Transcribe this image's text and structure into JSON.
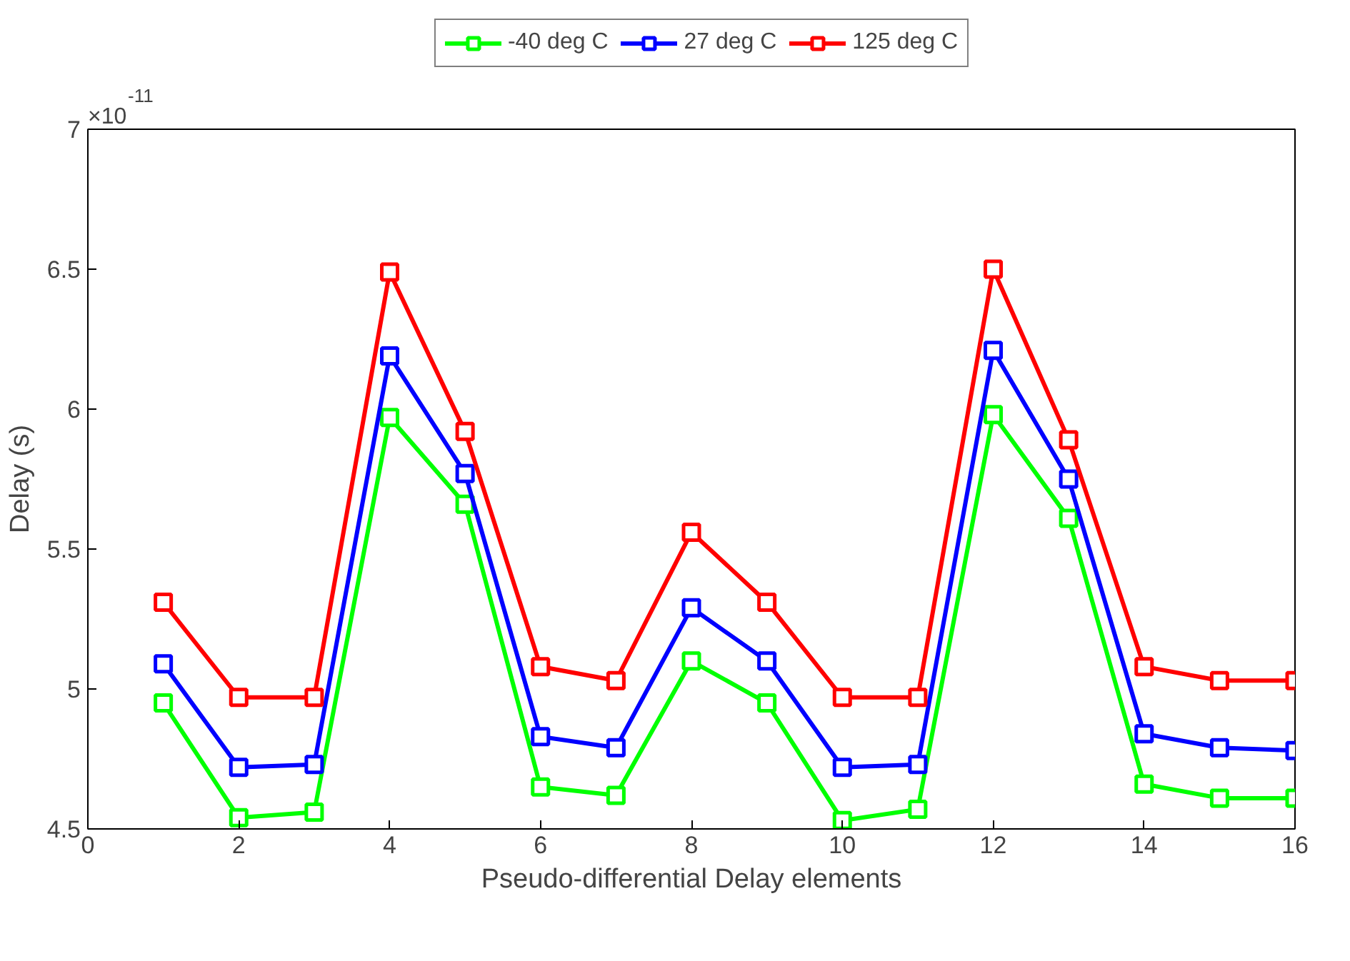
{
  "chart_data": {
    "type": "line",
    "xlabel": "Pseudo-differential Delay elements",
    "ylabel": "Delay (s)",
    "annotations": [
      "×10$^{-11}$"
    ],
    "x": [
      1,
      2,
      3,
      4,
      5,
      6,
      7,
      8,
      9,
      10,
      11,
      12,
      13,
      14,
      15,
      16
    ],
    "series": [
      {
        "name": "-40 deg C",
        "color": "#00ff00",
        "values": [
          4.95,
          4.54,
          4.56,
          5.97,
          5.66,
          4.65,
          4.62,
          5.1,
          4.95,
          4.53,
          4.57,
          5.98,
          5.61,
          4.66,
          4.61,
          4.61
        ]
      },
      {
        "name": "27 deg C",
        "color": "#0000ff",
        "values": [
          5.09,
          4.72,
          4.73,
          6.19,
          5.77,
          4.83,
          4.79,
          5.29,
          5.1,
          4.72,
          4.73,
          6.21,
          5.75,
          4.84,
          4.79,
          4.78
        ]
      },
      {
        "name": "125 deg C",
        "color": "#ff0000",
        "values": [
          5.31,
          4.97,
          4.97,
          6.49,
          5.92,
          5.08,
          5.03,
          5.56,
          5.31,
          4.97,
          4.97,
          6.5,
          5.89,
          5.08,
          5.03,
          5.03
        ]
      }
    ],
    "xlim": [
      0,
      16
    ],
    "xticks": [
      0,
      2,
      4,
      6,
      8,
      10,
      12,
      14,
      16
    ],
    "ylim": [
      4.5,
      7
    ],
    "yticks": [
      4.5,
      5,
      5.5,
      6,
      6.5,
      7
    ],
    "grid": false,
    "legend": "top",
    "marker": "square",
    "line_style": "solid"
  }
}
